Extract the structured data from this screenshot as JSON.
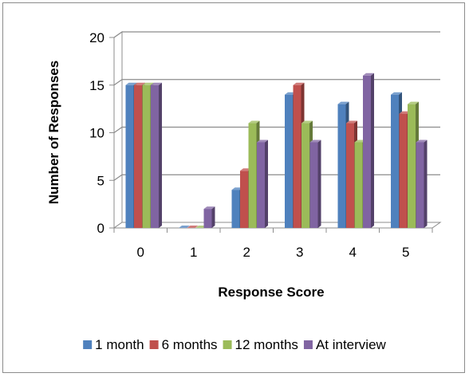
{
  "chart_data": {
    "type": "bar",
    "style": "3d-clustered-column",
    "title": "",
    "xlabel": "Response Score",
    "ylabel": "Number of Responses",
    "categories": [
      "0",
      "1",
      "2",
      "3",
      "4",
      "5"
    ],
    "ylim": [
      0,
      20
    ],
    "yticks": [
      "0",
      "5",
      "10",
      "15",
      "20"
    ],
    "grid": true,
    "legend_position": "bottom",
    "series": [
      {
        "name": "1 month",
        "color": "#4f81bd",
        "values": [
          15,
          0,
          4,
          14,
          13,
          14
        ]
      },
      {
        "name": "6 months",
        "color": "#c0504d",
        "values": [
          15,
          0,
          6,
          15,
          11,
          12
        ]
      },
      {
        "name": "12 months",
        "color": "#9bbb59",
        "values": [
          15,
          0,
          11,
          11,
          9,
          13
        ]
      },
      {
        "name": "At interview",
        "color": "#8064a2",
        "values": [
          15,
          2,
          9,
          9,
          16,
          9
        ]
      }
    ]
  }
}
